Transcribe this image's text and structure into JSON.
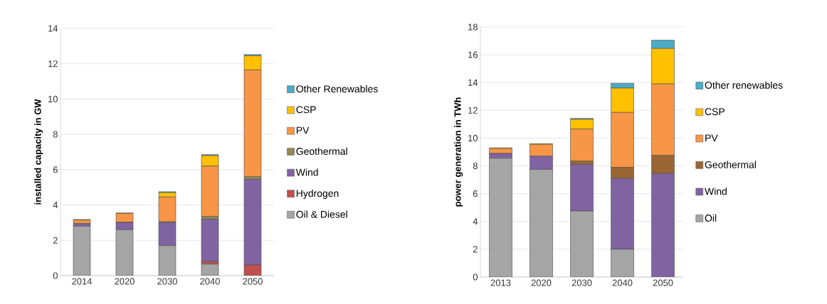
{
  "chart_data": [
    {
      "type": "bar",
      "stacked": true,
      "ylabel": "installed capacity in GW",
      "categories": [
        "2014",
        "2020",
        "2030",
        "2040",
        "2050"
      ],
      "ylim": [
        0,
        14
      ],
      "yticks": [
        0,
        2,
        4,
        6,
        8,
        10,
        12,
        14
      ],
      "grid": "y",
      "legend": "right",
      "series": [
        {
          "name": "Oil & Diesel",
          "color": "#a5a5a5",
          "values": [
            2.8,
            2.6,
            1.7,
            0.65,
            0
          ]
        },
        {
          "name": "Hydrogen",
          "color": "#c0504d",
          "values": [
            0,
            0,
            0,
            0.15,
            0.6
          ]
        },
        {
          "name": "Wind",
          "color": "#8064a2",
          "values": [
            0.15,
            0.4,
            1.3,
            2.4,
            4.85
          ]
        },
        {
          "name": "Geothermal",
          "color": "#948a54",
          "values": [
            null,
            0.02,
            0.05,
            0.15,
            0.15
          ]
        },
        {
          "name": "PV",
          "color": "#f79646",
          "values": [
            0.2,
            0.5,
            1.4,
            2.85,
            6.05
          ]
        },
        {
          "name": "CSP",
          "color": "#ffc000",
          "values": [
            0.03,
            0.03,
            0.25,
            0.6,
            0.8
          ]
        },
        {
          "name": "Other Renewables",
          "color": "#4bacc6",
          "values": [
            0,
            0,
            0.05,
            0.05,
            0.07
          ]
        }
      ]
    },
    {
      "type": "bar",
      "stacked": true,
      "ylabel": "power generation in TWh",
      "categories": [
        "2013",
        "2020",
        "2030",
        "2040",
        "2050"
      ],
      "ylim": [
        0,
        18
      ],
      "yticks": [
        0,
        2,
        4,
        6,
        8,
        10,
        12,
        14,
        16,
        18
      ],
      "grid": "y",
      "legend": "right",
      "series": [
        {
          "name": "Oil",
          "color": "#a5a5a5",
          "values": [
            8.55,
            7.75,
            4.75,
            2.0,
            0
          ]
        },
        {
          "name": "Wind",
          "color": "#8064a2",
          "values": [
            0.35,
            0.95,
            3.35,
            5.1,
            7.45
          ]
        },
        {
          "name": "Geothermal",
          "color": "#996633",
          "values": [
            0,
            0,
            0.25,
            0.8,
            1.3
          ]
        },
        {
          "name": "PV",
          "color": "#f79646",
          "values": [
            0.35,
            0.85,
            2.3,
            3.95,
            5.15
          ]
        },
        {
          "name": "CSP",
          "color": "#ffc000",
          "values": [
            0.05,
            0.05,
            0.7,
            1.75,
            2.55
          ]
        },
        {
          "name": "Other renewables",
          "color": "#4bacc6",
          "values": [
            0,
            0,
            0.07,
            0.35,
            0.6
          ]
        }
      ]
    }
  ]
}
